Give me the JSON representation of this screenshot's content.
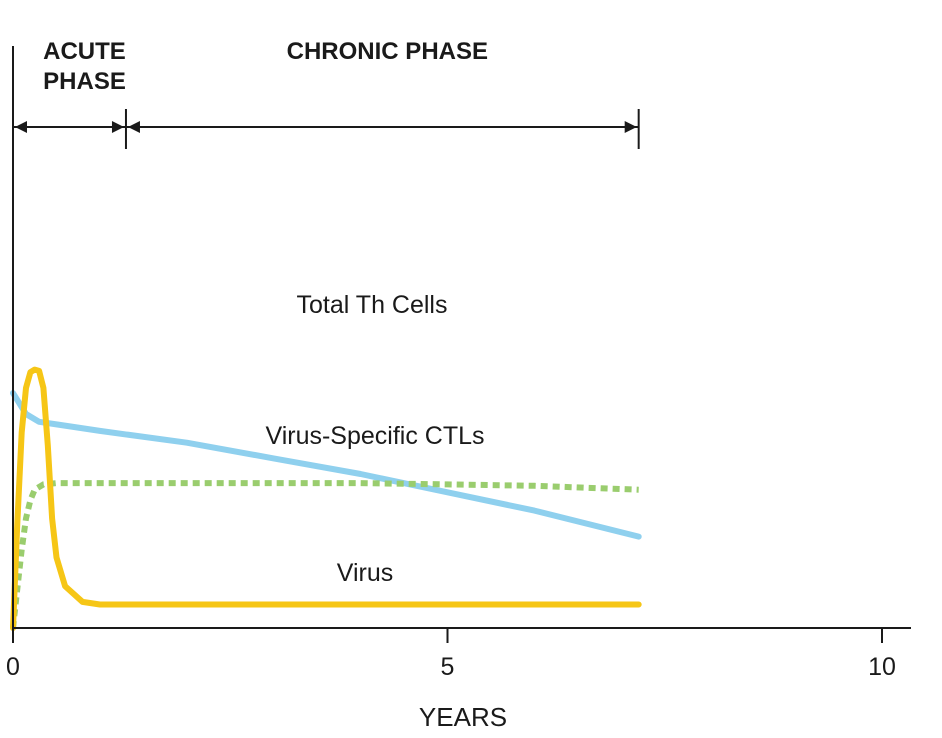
{
  "chart_data": {
    "type": "line",
    "xlabel": "YEARS",
    "xlim": [
      0,
      10
    ],
    "ylim": [
      0,
      100
    ],
    "x_ticks": [
      {
        "value": 0,
        "label": "0"
      },
      {
        "value": 5,
        "label": "5"
      },
      {
        "value": 10,
        "label": "10"
      }
    ],
    "phases": [
      {
        "label_lines": [
          "ACUTE",
          "PHASE"
        ],
        "start": 0,
        "end": 1.3
      },
      {
        "label_lines": [
          "CHRONIC PHASE"
        ],
        "start": 1.3,
        "end": 7.2
      }
    ],
    "series": [
      {
        "name": "Total Th Cells",
        "color": "#8fd0ee",
        "style": "solid",
        "x": [
          0,
          0.15,
          0.3,
          0.5,
          1,
          2,
          3,
          4,
          5,
          6,
          7.2
        ],
        "y": [
          90,
          82,
          79,
          78,
          75.5,
          71,
          65,
          59,
          52,
          45,
          35
        ]
      },
      {
        "name": "Virus-Specific CTLs",
        "color": "#9acd6e",
        "style": "dotted",
        "x": [
          0,
          0.05,
          0.1,
          0.15,
          0.2,
          0.25,
          0.35,
          0.5,
          1,
          2,
          3,
          4,
          5,
          6,
          7.2
        ],
        "y": [
          0,
          15,
          30,
          42,
          49,
          53,
          55,
          55.5,
          55.5,
          55.5,
          55.5,
          55.5,
          55,
          54.5,
          53
        ]
      },
      {
        "name": "Virus",
        "color": "#f6c616",
        "style": "solid",
        "x": [
          0,
          0.05,
          0.1,
          0.15,
          0.2,
          0.25,
          0.3,
          0.35,
          0.4,
          0.45,
          0.5,
          0.6,
          0.8,
          1,
          2,
          4,
          6,
          7.2
        ],
        "y": [
          0,
          40,
          75,
          92,
          98,
          99,
          98.5,
          92,
          70,
          42,
          27,
          16,
          10,
          9,
          9,
          9,
          9,
          9
        ]
      }
    ],
    "annotations": [
      {
        "text": "Total Th Cells",
        "series": 0
      },
      {
        "text": "Virus-Specific CTLs",
        "series": 1
      },
      {
        "text": "Virus",
        "series": 2
      }
    ]
  }
}
